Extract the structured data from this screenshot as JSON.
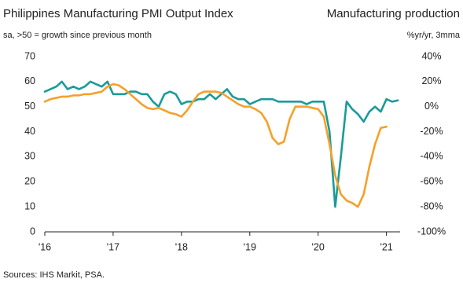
{
  "chart_data": {
    "type": "line",
    "y_label": "sa, >50 = growth since previous month",
    "y2_label": "%yr/yr, 3mma",
    "source": "Sources: IHS Markit, PSA.",
    "x": [
      2016,
      2016.083,
      2016.167,
      2016.25,
      2016.333,
      2016.417,
      2016.5,
      2016.583,
      2016.667,
      2016.75,
      2016.833,
      2016.917,
      2017,
      2017.083,
      2017.167,
      2017.25,
      2017.333,
      2017.417,
      2017.5,
      2017.583,
      2017.667,
      2017.75,
      2017.833,
      2017.917,
      2018,
      2018.083,
      2018.167,
      2018.25,
      2018.333,
      2018.417,
      2018.5,
      2018.583,
      2018.667,
      2018.75,
      2018.833,
      2018.917,
      2019,
      2019.083,
      2019.167,
      2019.25,
      2019.333,
      2019.417,
      2019.5,
      2019.583,
      2019.667,
      2019.75,
      2019.833,
      2019.917,
      2020,
      2020.083,
      2020.167,
      2020.25,
      2020.333,
      2020.417,
      2020.5,
      2020.583,
      2020.667,
      2020.75,
      2020.833,
      2020.917,
      2021,
      2021.083,
      2021.167
    ],
    "series": [
      {
        "name": "Philippines Manufacturing PMI Output Index",
        "color": "#1a9b9a",
        "axis": "y",
        "values": [
          56,
          57,
          58,
          60,
          57,
          58,
          57,
          58,
          60,
          59,
          58,
          60,
          55,
          55,
          55,
          56,
          56,
          55,
          55,
          52,
          50,
          55,
          56,
          55,
          51,
          52,
          52,
          53,
          53,
          55,
          53,
          55,
          57,
          54,
          53,
          53,
          51,
          52,
          53,
          53,
          53,
          52,
          52,
          52,
          52,
          52,
          51,
          52,
          52,
          52,
          40,
          10,
          30,
          52,
          49,
          47,
          44,
          48,
          50,
          48,
          53,
          52,
          52.5
        ]
      },
      {
        "name": "Manufacturing production",
        "color": "#f5a02a",
        "axis": "y2",
        "values": [
          4,
          6,
          7,
          8,
          8,
          9,
          9,
          10,
          10,
          11,
          12,
          16,
          18,
          17,
          14,
          10,
          6,
          2,
          -1,
          -2,
          -1,
          -3,
          -5,
          -6,
          -8,
          -3,
          4,
          10,
          12,
          12,
          12,
          11,
          8,
          5,
          2,
          0,
          0,
          -2,
          -5,
          -12,
          -25,
          -30,
          -28,
          -10,
          0,
          0,
          0,
          -1,
          -2,
          -8,
          -30,
          -55,
          -70,
          -75,
          -77,
          -80,
          -70,
          -48,
          -30,
          -17,
          -16,
          null,
          null
        ]
      }
    ],
    "xlim": [
      2016,
      2021.2
    ],
    "xticks": [
      {
        "value": 2016,
        "label": "'16"
      },
      {
        "value": 2017,
        "label": "'17"
      },
      {
        "value": 2018,
        "label": "'18"
      },
      {
        "value": 2019,
        "label": "'19"
      },
      {
        "value": 2020,
        "label": "'20"
      },
      {
        "value": 2021,
        "label": "'21"
      }
    ],
    "ylim": [
      0,
      70
    ],
    "yticks": [
      0,
      10,
      20,
      30,
      40,
      50,
      60,
      70
    ],
    "y2lim": [
      -100,
      40
    ],
    "y2ticks": [
      {
        "value": -100,
        "label": "-100%"
      },
      {
        "value": -80,
        "label": "-80%"
      },
      {
        "value": -60,
        "label": "-60%"
      },
      {
        "value": -40,
        "label": "-40%"
      },
      {
        "value": -20,
        "label": "-20%"
      },
      {
        "value": 0,
        "label": "0%"
      },
      {
        "value": 20,
        "label": "20%"
      },
      {
        "value": 40,
        "label": "40%"
      }
    ],
    "grid": false
  }
}
